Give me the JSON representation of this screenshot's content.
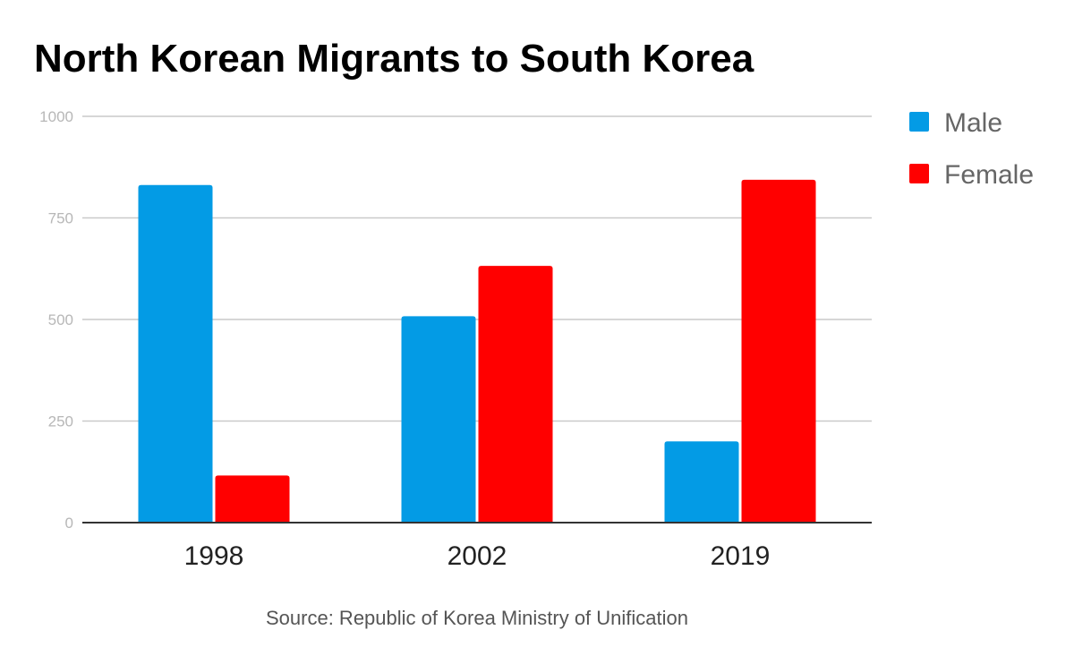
{
  "chart_data": {
    "type": "bar",
    "title": "North Korean Migrants to South Korea",
    "categories": [
      "1998",
      "2002",
      "2019"
    ],
    "series": [
      {
        "name": "Male",
        "color": "#039be5",
        "values": [
          831,
          508,
          200
        ]
      },
      {
        "name": "Female",
        "color": "#ff0000",
        "values": [
          116,
          632,
          844
        ]
      }
    ],
    "ylim": [
      0,
      1000
    ],
    "yticks": [
      "0",
      "250",
      "500",
      "750",
      "1000"
    ],
    "grid": true,
    "legend_position": "right",
    "source": "Source: Republic of Korea Ministry of Unification"
  }
}
